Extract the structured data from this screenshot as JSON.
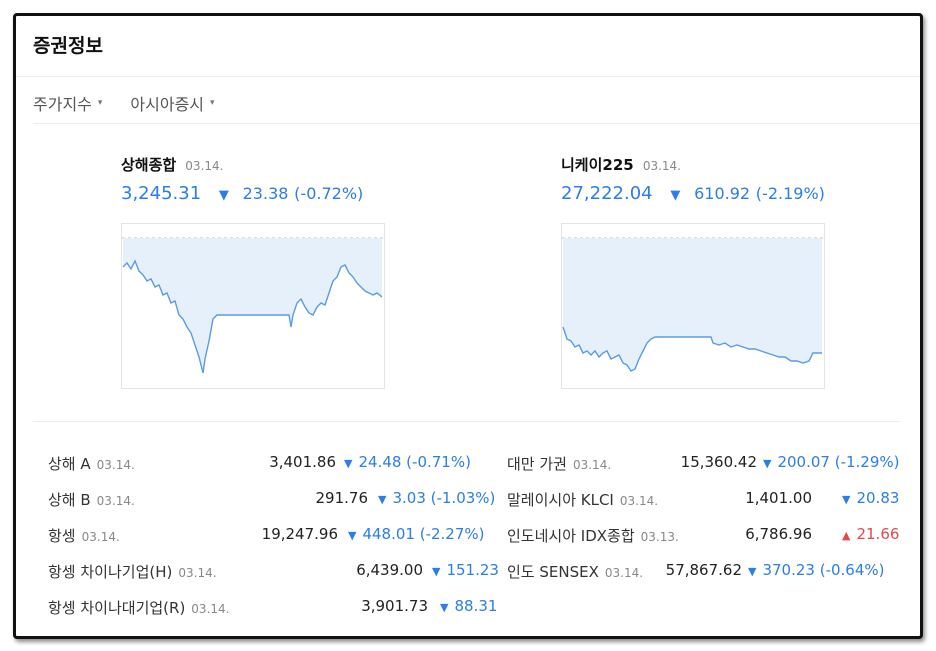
{
  "title": "증권정보",
  "tabs": [
    {
      "label": "주가지수",
      "caret": "▾"
    },
    {
      "label": "아시아증시",
      "caret": "▾"
    }
  ],
  "colors": {
    "down": "#2b7de9",
    "up": "#e5484d",
    "chart_fill": "#e6f0fb",
    "chart_line": "#5a9be6"
  },
  "featured": [
    {
      "name": "상해종합",
      "date": "03.14.",
      "value": "3,245.31",
      "arrow": "▼",
      "change": "23.38",
      "pct": "(-0.72%)"
    },
    {
      "name": "니케이225",
      "date": "03.14.",
      "value": "27,222.04",
      "arrow": "▼",
      "change": "610.92",
      "pct": "(-2.19%)"
    }
  ],
  "left_list": [
    {
      "name": "상해 A",
      "date": "03.14.",
      "value": "3,401.86",
      "arrow": "▼",
      "change": "24.48 (-0.71%)",
      "dir": "down"
    },
    {
      "name": "상해 B",
      "date": "03.14.",
      "value": "291.76",
      "arrow": "▼",
      "change": "3.03 (-1.03%)",
      "dir": "down"
    },
    {
      "name": "항셍",
      "date": "03.14.",
      "value": "19,247.96",
      "arrow": "▼",
      "change": "448.01 (-2.27%)",
      "dir": "down"
    },
    {
      "name": "항셍 차이나기업(H)",
      "date": "03.14.",
      "value": "6,439.00",
      "arrow": "▼",
      "change": "151.23",
      "dir": "down"
    },
    {
      "name": "항셍 차이나대기업(R)",
      "date": "03.14.",
      "value": "3,901.73",
      "arrow": "▼",
      "change": "88.31",
      "dir": "down"
    }
  ],
  "right_list": [
    {
      "name": "대만 가권",
      "date": "03.14.",
      "value": "15,360.42",
      "arrow": "▼",
      "change": "200.07 (-1.29%)",
      "dir": "down"
    },
    {
      "name": "말레이시아 KLCI",
      "date": "03.14.",
      "value": "1,401.00",
      "arrow": "▼",
      "change": "20.83",
      "dir": "down"
    },
    {
      "name": "인도네시아 IDX종합",
      "date": "03.13.",
      "value": "6,786.96",
      "arrow": "▲",
      "change": "21.66",
      "dir": "up"
    },
    {
      "name": "인도 SENSEX",
      "date": "03.14.",
      "value": "57,867.62",
      "arrow": "▼",
      "change": "370.23 (-0.64%)",
      "dir": "down"
    }
  ]
}
